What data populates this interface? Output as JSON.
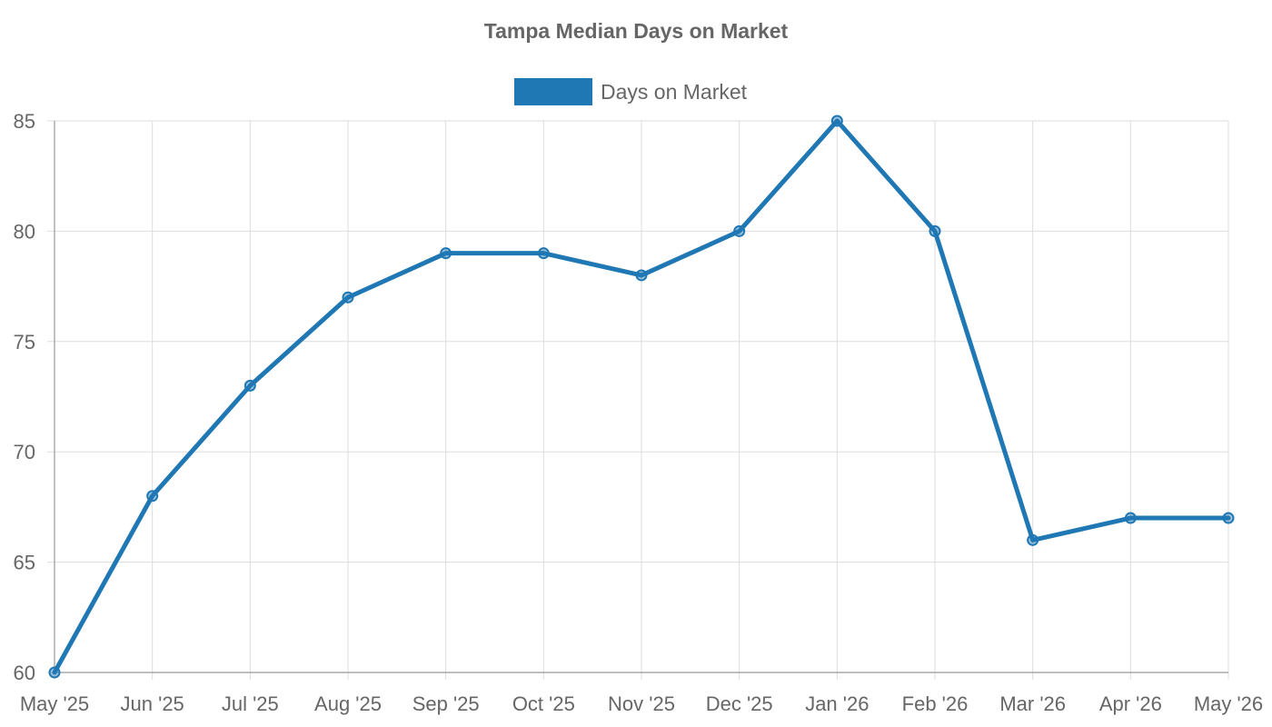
{
  "chart_data": {
    "type": "line",
    "title": "Tampa Median Days on Market",
    "xlabel": "",
    "ylabel": "",
    "categories": [
      "May '25",
      "Jun '25",
      "Jul '25",
      "Aug '25",
      "Sep '25",
      "Oct '25",
      "Nov '25",
      "Dec '25",
      "Jan '26",
      "Feb '26",
      "Mar '26",
      "Apr '26",
      "May '26"
    ],
    "series": [
      {
        "name": "Days on Market",
        "values": [
          60,
          68,
          73,
          77,
          79,
          79,
          78,
          80,
          85,
          80,
          66,
          67,
          67
        ],
        "color": "#1f77b4"
      }
    ],
    "ylim": [
      60,
      85
    ],
    "yticks": [
      60,
      65,
      70,
      75,
      80,
      85
    ],
    "grid": true,
    "legend_position": "top-center"
  }
}
